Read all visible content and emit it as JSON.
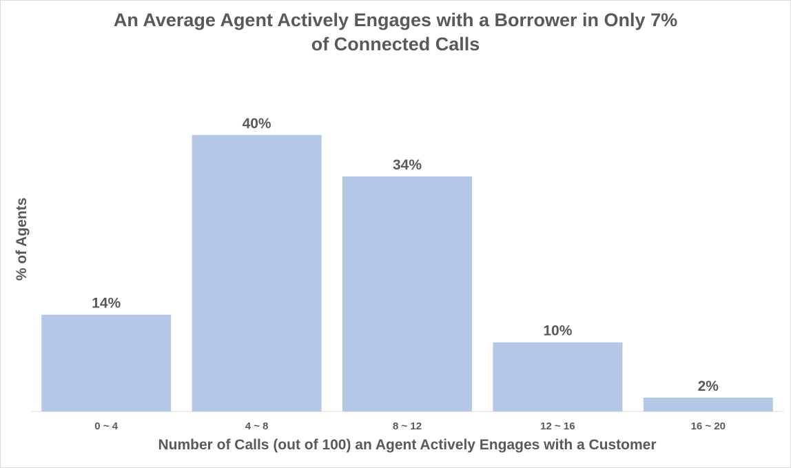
{
  "chart_data": {
    "type": "bar",
    "title_line1": "An Average Agent Actively Engages with a Borrower in Only 7%",
    "title_line2": "of Connected Calls",
    "xlabel": "Number of Calls (out of 100) an Agent Actively Engages with a Customer",
    "ylabel": "% of Agents",
    "categories": [
      "0 ~ 4",
      "4 ~ 8",
      "8 ~ 12",
      "12 ~ 16",
      "16 ~ 20"
    ],
    "values": [
      14,
      40,
      34,
      10,
      2
    ],
    "data_labels": [
      "14%",
      "40%",
      "34%",
      "10%",
      "2%"
    ],
    "ylim": [
      0,
      41.5
    ],
    "grid": false,
    "legend": "none",
    "bar_color": "#b4c7e7",
    "axis_color": "#d9d9d9",
    "text_color": "#595959"
  }
}
